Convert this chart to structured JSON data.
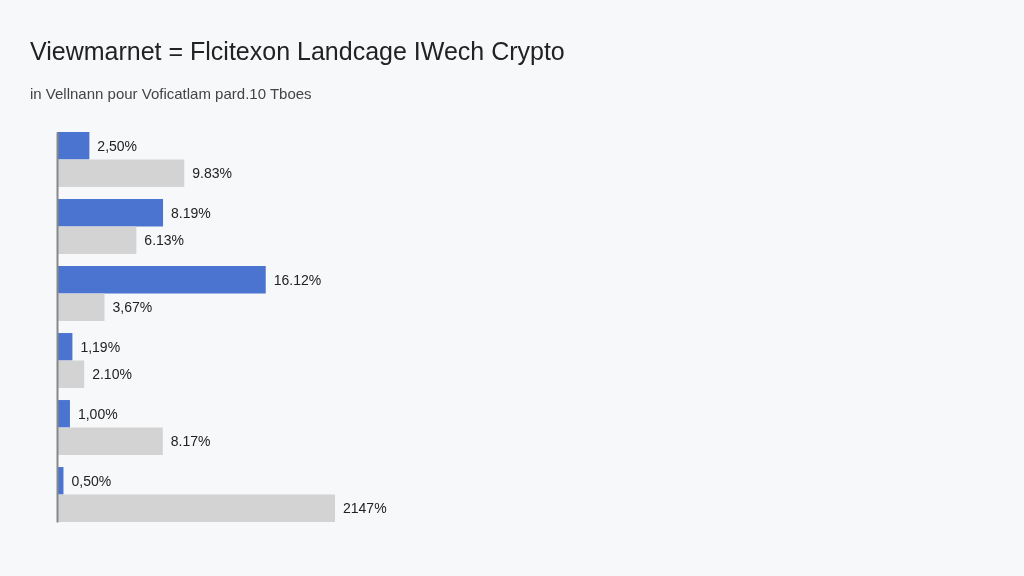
{
  "chart_data": {
    "type": "bar",
    "orientation": "horizontal",
    "title": "Viewmarnet = Flcitexon Landcage IWech Crypto",
    "subtitle": "in Vellnann pour Voficatlam pard.10 Tboes",
    "categories": [
      null,
      null,
      null,
      null,
      null,
      null
    ],
    "series": [
      {
        "color": "#4a74d0",
        "values": [
          2.5,
          8.19,
          16.12,
          1.19,
          1.0,
          0.5
        ],
        "value_labels": [
          "2,50%",
          "8.19%",
          "16.12%",
          "1,19%",
          "1,00%",
          "0,50%"
        ]
      },
      {
        "color": "#d3d3d3",
        "values": [
          9.83,
          6.13,
          3.67,
          2.1,
          8.17,
          21.47
        ],
        "value_labels": [
          "9.83%",
          "6.13%",
          "3,67%",
          "2.10%",
          "8.17%",
          "2147%"
        ]
      }
    ]
  }
}
